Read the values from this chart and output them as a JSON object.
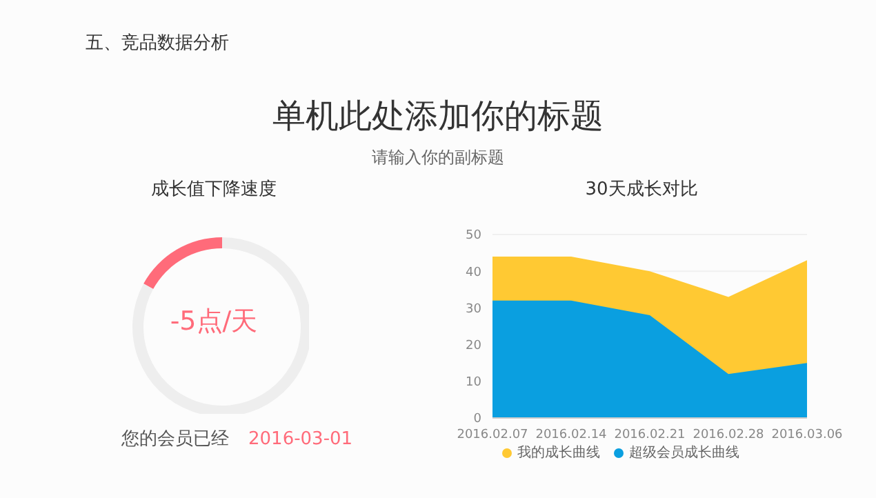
{
  "chart_data": [
    {
      "type": "donut",
      "title": "成长值下降速度",
      "categories": [
        null,
        null
      ],
      "values": [
        17,
        83
      ],
      "colors": [
        "#ff6b7a",
        "#eeeeee"
      ],
      "annotations": [
        "五、竞品数据分析",
        "单机此处添加你的标题",
        "请输入你的副标题",
        "-5点/天",
        "您的会员已经",
        "2016-03-01"
      ]
    },
    {
      "type": "area",
      "title": "30天成长对比",
      "categories": [
        "2016.02.07",
        "2016.02.14",
        "2016.02.21",
        "2016.02.28",
        "2016.03.06"
      ],
      "series": [
        {
          "name": "我的成长曲线",
          "color": "#ffc933",
          "values": [
            44,
            44,
            40,
            33,
            43
          ]
        },
        {
          "name": "超级会员成长曲线",
          "color": "#0a9fe0",
          "values": [
            32,
            32,
            28,
            12,
            15
          ]
        }
      ],
      "ylim": [
        0,
        50
      ],
      "yticks": [
        0,
        10,
        20,
        30,
        40,
        50
      ],
      "grid": "y",
      "legend": "bottom"
    }
  ]
}
